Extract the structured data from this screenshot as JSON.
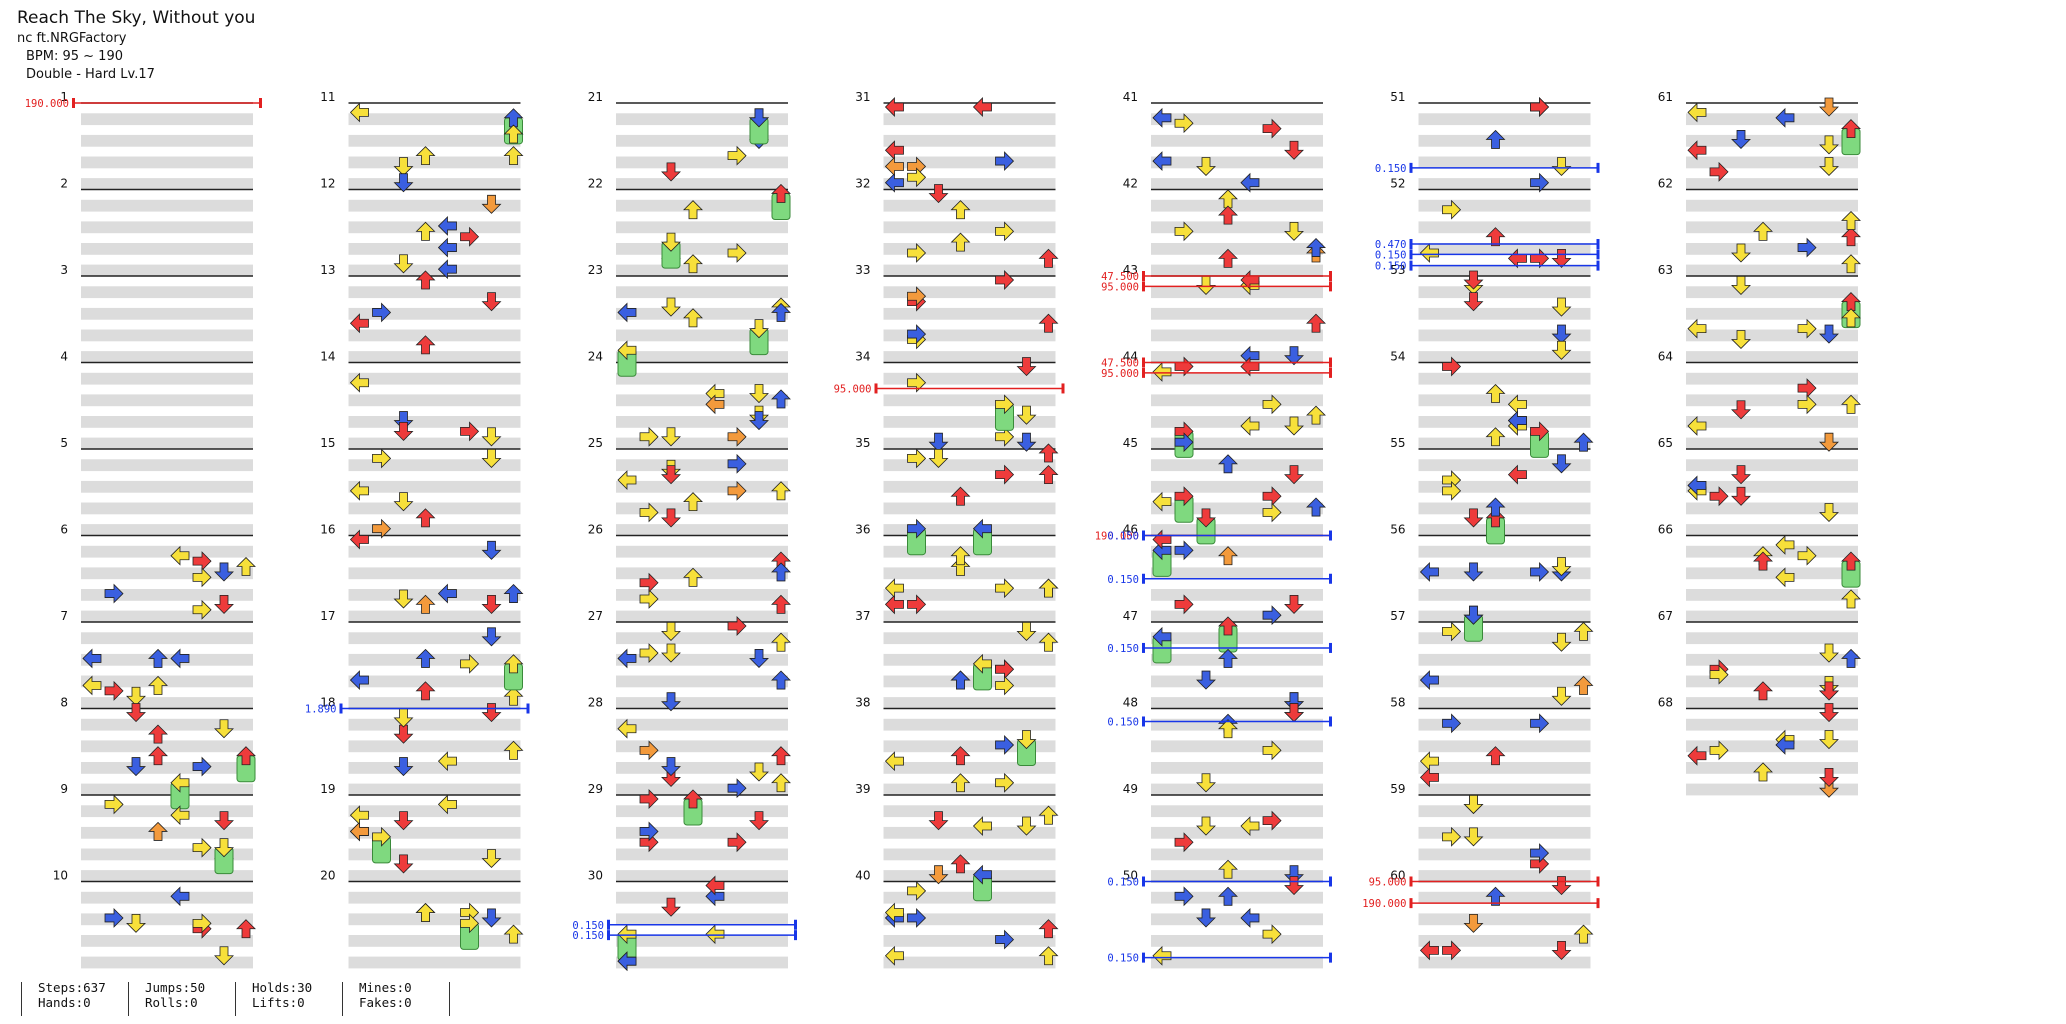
{
  "song": {
    "title": "Reach The Sky, Without you",
    "artist": "nc ft.NRGFactory",
    "bpm_label": "BPM: 95 ~ 190",
    "difficulty_label": "Double - Hard Lv.17"
  },
  "stats": [
    {
      "line1": "Steps:637",
      "line2": "Hands:0"
    },
    {
      "line1": "Jumps:50",
      "line2": "Rolls:0"
    },
    {
      "line1": "Holds:30",
      "line2": "Lifts:0"
    },
    {
      "line1": "Mines:0",
      "line2": "Fakes:0"
    }
  ],
  "colors": {
    "note_red": "#ee3b3b",
    "note_blue": "#3a5fe0",
    "note_yellow": "#f7e03a",
    "note_orange": "#f39a3c",
    "note_green": "#7fd97f",
    "bpm_marker": "#e22020",
    "speed_marker": "#1836e8",
    "stripe": "#dcdcdc"
  },
  "measures": [
    "1",
    "2",
    "3",
    "4",
    "5",
    "6",
    "7",
    "8",
    "9",
    "10",
    "11",
    "12",
    "13",
    "14",
    "15",
    "16",
    "17",
    "18",
    "19",
    "20",
    "21",
    "22",
    "23",
    "24",
    "25",
    "26",
    "27",
    "28",
    "29",
    "30",
    "31",
    "32",
    "33",
    "34",
    "35",
    "36",
    "37",
    "38",
    "39",
    "40",
    "41",
    "42",
    "43",
    "44",
    "45",
    "46",
    "47",
    "48",
    "49",
    "50",
    "51",
    "52",
    "53",
    "54",
    "55",
    "56",
    "57",
    "58",
    "59",
    "60",
    "61",
    "62",
    "63",
    "64",
    "65",
    "66",
    "67",
    "68"
  ],
  "markers": [
    {
      "label": "190.000",
      "kind": "bpm",
      "measure": 1
    },
    {
      "label": "1.890",
      "kind": "speed",
      "measure": 18
    },
    {
      "label": "0.150",
      "kind": "speed",
      "measure": 30.5
    },
    {
      "label": "0.150",
      "kind": "speed",
      "measure": 30.62
    },
    {
      "label": "95.000",
      "kind": "bpm",
      "measure": 34.3
    },
    {
      "label": "47.500",
      "kind": "bpm",
      "measure": 43
    },
    {
      "label": "95.000",
      "kind": "bpm",
      "measure": 43.12
    },
    {
      "label": "47.500",
      "kind": "bpm",
      "measure": 44
    },
    {
      "label": "95.000",
      "kind": "bpm",
      "measure": 44.12
    },
    {
      "label": "190.000",
      "kind": "bpm",
      "measure": 46
    },
    {
      "label": "0.150",
      "kind": "speed",
      "measure": 46
    },
    {
      "label": "0.150",
      "kind": "speed",
      "measure": 46.5
    },
    {
      "label": "0.150",
      "kind": "speed",
      "measure": 47.3
    },
    {
      "label": "0.150",
      "kind": "speed",
      "measure": 48.15
    },
    {
      "label": "0.150",
      "kind": "speed",
      "measure": 50
    },
    {
      "label": "0.150",
      "kind": "speed",
      "measure": 50.88
    },
    {
      "label": "0.150",
      "kind": "speed",
      "measure": 51.75
    },
    {
      "label": "0.470",
      "kind": "speed",
      "measure": 52.63
    },
    {
      "label": "0.150",
      "kind": "speed",
      "measure": 52.75
    },
    {
      "label": "0.150",
      "kind": "speed",
      "measure": 52.88
    },
    {
      "label": "95.000",
      "kind": "bpm",
      "measure": 60
    },
    {
      "label": "190.000",
      "kind": "bpm",
      "measure": 60.25
    }
  ]
}
